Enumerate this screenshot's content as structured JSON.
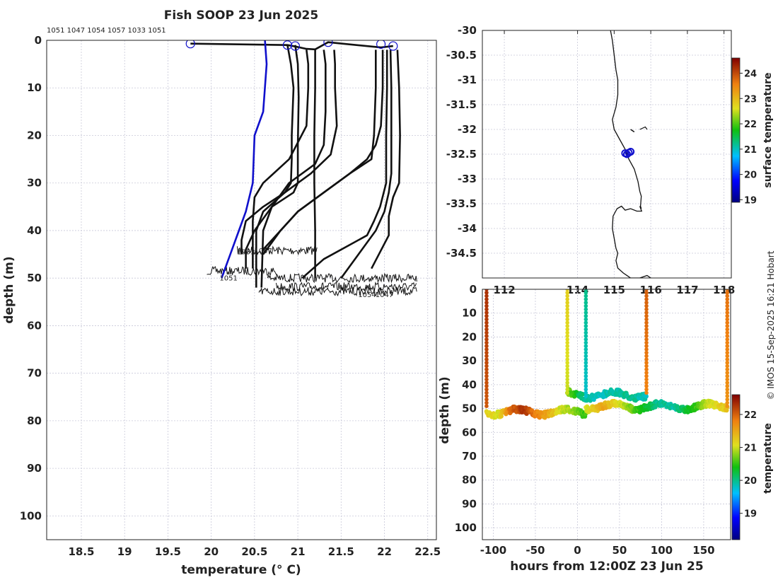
{
  "figure": {
    "title": "Fish SOOP 23 Jun 2025",
    "credit": "© IMOS 15-Sep-2025 16:21 Hobart"
  },
  "chart_data": [
    {
      "type": "line",
      "panel": "profiles",
      "xlabel": "temperature (° C)",
      "ylabel": "depth (m)",
      "xlim": [
        18.1,
        22.6
      ],
      "ylim": [
        105,
        0
      ],
      "y_inverted": true,
      "xticks": [
        18.5,
        19,
        19.5,
        20,
        20.5,
        21,
        21.5,
        22,
        22.5
      ],
      "yticks": [
        0,
        10,
        20,
        30,
        40,
        50,
        60,
        70,
        80,
        90,
        100
      ],
      "grid": true,
      "header_labels": "1051 1047 1054 1057 1033 1051",
      "highlight_color": "#1010cc",
      "series": [
        {
          "id": "1051",
          "color": "#1010cc",
          "x": [
            20.62,
            20.64,
            20.6,
            20.5,
            20.48,
            20.4,
            20.32,
            20.22,
            20.12
          ],
          "y": [
            0,
            5,
            15,
            20,
            30,
            36,
            40,
            45,
            50
          ]
        },
        {
          "id": "p2",
          "color": "#111111",
          "x": [
            20.88,
            20.92,
            20.95,
            20.93,
            20.93,
            20.92,
            20.85,
            20.6,
            20.4,
            20.35,
            20.35
          ],
          "y": [
            1,
            5,
            10,
            20,
            25,
            30,
            32,
            35,
            38,
            42,
            45
          ]
        },
        {
          "id": "p3",
          "color": "#111111",
          "x": [
            20.97,
            21.0,
            21.01,
            21.0,
            21.0,
            21.0,
            20.95,
            20.7,
            20.5,
            20.4,
            20.4
          ],
          "y": [
            1,
            5,
            12,
            22,
            28,
            30,
            32,
            35,
            40,
            44,
            48
          ]
        },
        {
          "id": "p4",
          "color": "#111111",
          "x": [
            21.1,
            21.12,
            21.12,
            21.1,
            20.9,
            20.6,
            20.5,
            20.48,
            20.48
          ],
          "y": [
            2,
            5,
            10,
            18,
            25,
            30,
            33,
            38,
            48
          ]
        },
        {
          "id": "p5",
          "color": "#111111",
          "x": [
            21.2,
            21.2,
            21.19,
            21.19,
            21.2,
            21.2
          ],
          "y": [
            2,
            10,
            20,
            30,
            40,
            50
          ]
        },
        {
          "id": "p6",
          "color": "#111111",
          "x": [
            21.3,
            21.32,
            21.32,
            21.3,
            21.2,
            20.9,
            20.7,
            20.6,
            20.58
          ],
          "y": [
            2,
            5,
            15,
            22,
            26,
            30,
            35,
            40,
            52
          ]
        },
        {
          "id": "p7",
          "color": "#111111",
          "x": [
            21.42,
            21.43,
            21.43,
            21.45,
            21.38,
            21.15,
            20.85,
            20.6,
            20.52,
            20.52
          ],
          "y": [
            2,
            5,
            10,
            18,
            24,
            28,
            32,
            36,
            40,
            52
          ]
        },
        {
          "id": "p8",
          "color": "#111111",
          "x": [
            21.9,
            21.9,
            21.88,
            21.85,
            21.6,
            21.3,
            21.0,
            20.8,
            20.6
          ],
          "y": [
            2,
            10,
            20,
            25,
            28,
            32,
            36,
            40,
            44
          ]
        },
        {
          "id": "p9",
          "color": "#111111",
          "x": [
            21.98,
            21.98,
            21.96,
            21.9,
            21.8,
            21.6,
            21.3,
            21.0,
            20.8,
            20.6
          ],
          "y": [
            2,
            10,
            18,
            22,
            25,
            28,
            32,
            36,
            40,
            45
          ]
        },
        {
          "id": "p10",
          "color": "#111111",
          "x": [
            22.03,
            22.03,
            22.02,
            22.02,
            21.95,
            21.88,
            21.8,
            21.6,
            21.3,
            21.05
          ],
          "y": [
            2,
            10,
            20,
            30,
            35,
            38,
            41,
            43,
            46,
            50
          ]
        },
        {
          "id": "p11",
          "color": "#111111",
          "x": [
            22.07,
            22.08,
            22.08,
            22.08,
            22.05,
            22.0,
            21.9,
            21.7,
            21.5
          ],
          "y": [
            2,
            10,
            20,
            28,
            32,
            36,
            40,
            45,
            50
          ]
        },
        {
          "id": "p12",
          "color": "#111111",
          "x": [
            22.15,
            22.17,
            22.18,
            22.17,
            22.1,
            22.05,
            22.05,
            21.85
          ],
          "y": [
            2,
            10,
            20,
            30,
            33,
            37,
            41,
            48
          ]
        },
        {
          "id": "surface-track",
          "color": "#111111",
          "x": [
            19.76,
            20.88,
            20.97,
            21.1,
            21.2,
            21.35,
            21.96,
            22.1
          ],
          "y": [
            0.7,
            1.0,
            1.3,
            1.8,
            1.9,
            0.4,
            1.5,
            1.2
          ]
        }
      ],
      "bottom_noise": [
        {
          "x0": 20.3,
          "x1": 21.22,
          "y": 44.2
        },
        {
          "x0": 19.95,
          "x1": 20.75,
          "y": 48.5
        },
        {
          "x0": 20.65,
          "x1": 22.37,
          "y": 50.0
        },
        {
          "x0": 20.75,
          "x1": 22.37,
          "y": 51.8
        },
        {
          "x0": 20.55,
          "x1": 22.37,
          "y": 52.8
        }
      ],
      "markers": [
        {
          "x": 19.76,
          "y": 0.7
        },
        {
          "x": 20.88,
          "y": 1.0
        },
        {
          "x": 20.97,
          "y": 1.2
        },
        {
          "x": 21.35,
          "y": 0.4
        },
        {
          "x": 21.96,
          "y": 0.8
        },
        {
          "x": 22.1,
          "y": 1.2
        }
      ],
      "annotations": [
        {
          "text": "1033",
          "x": 20.4,
          "y": 45.0
        },
        {
          "text": "1057",
          "x": 20.6,
          "y": 44.8
        },
        {
          "text": "1051",
          "x": 20.2,
          "y": 50.5
        },
        {
          "text": "1054",
          "x": 21.8,
          "y": 54.0
        },
        {
          "text": "1047",
          "x": 22.0,
          "y": 54.0
        }
      ]
    },
    {
      "type": "scatter",
      "panel": "map",
      "ylim": [
        -35,
        -30
      ],
      "xlim": [
        111.4,
        118.2
      ],
      "yticks": [
        -30,
        -30.5,
        -31,
        -31.5,
        -32,
        -32.5,
        -33,
        -33.5,
        -34,
        -34.5
      ],
      "xticks": [
        112,
        114,
        115,
        116,
        117,
        118
      ],
      "xticklabels": [
        "112",
        "114",
        "115",
        "116",
        "117",
        "118"
      ],
      "grid": true,
      "coastline": {
        "lon": [
          114.9,
          114.95,
          115.0,
          115.05,
          115.1,
          115.1,
          115.05,
          114.95,
          115.0,
          115.15,
          115.3,
          115.35,
          115.4,
          115.55,
          115.65,
          115.7,
          115.74,
          115.72,
          115.74,
          115.7,
          115.75,
          115.62,
          115.45,
          115.3,
          115.2,
          115.08,
          114.97,
          114.95,
          115.0,
          115.05,
          115.1,
          115.05,
          115.1,
          115.25,
          115.45,
          115.7,
          115.9,
          116.0
        ],
        "lat": [
          -30.0,
          -30.2,
          -30.5,
          -30.8,
          -31.0,
          -31.3,
          -31.55,
          -31.8,
          -32.0,
          -32.2,
          -32.4,
          -32.5,
          -32.6,
          -32.8,
          -33.05,
          -33.25,
          -33.35,
          -33.55,
          -33.6,
          -33.55,
          -33.65,
          -33.65,
          -33.6,
          -33.63,
          -33.55,
          -33.6,
          -33.75,
          -34.0,
          -34.2,
          -34.4,
          -34.5,
          -34.65,
          -34.8,
          -34.9,
          -35.0,
          -35.0,
          -34.95,
          -35.0
        ]
      },
      "track": {
        "lon": [
          115.3,
          115.35,
          115.4,
          115.45
        ],
        "lat": [
          -32.48,
          -32.5,
          -32.47,
          -32.45
        ]
      },
      "track_color": "#1010cc",
      "colorbar": {
        "label": "surface temperature",
        "ticks": [
          19,
          20,
          21,
          22,
          23,
          24
        ],
        "range": [
          18.9,
          24.6
        ]
      }
    },
    {
      "type": "scatter",
      "panel": "depth-time",
      "xlabel": "hours from 12:00Z 23 Jun 25",
      "ylabel": "depth (m)",
      "xlim": [
        -113,
        182
      ],
      "ylim": [
        105,
        0
      ],
      "y_inverted": true,
      "xticks": [
        -100,
        -50,
        0,
        50,
        100,
        150
      ],
      "yticks": [
        0,
        10,
        20,
        30,
        40,
        50,
        60,
        70,
        80,
        90,
        100
      ],
      "grid": true,
      "casts": [
        {
          "t": -108,
          "top_temp": 22.3,
          "bottom": 50
        },
        {
          "t": -12,
          "top_temp": 21.2,
          "bottom": 44
        },
        {
          "t": 10,
          "top_temp": 20.0,
          "bottom": 45
        },
        {
          "t": 82,
          "top_temp": 22.0,
          "bottom": 44
        },
        {
          "t": 178,
          "top_temp": 21.9,
          "bottom": 50
        }
      ],
      "bands": [
        {
          "t0": -108,
          "t1": 10,
          "depth": 51.5,
          "temps": [
            21.2,
            21.0,
            22.0,
            22.3,
            21.8,
            21.5,
            21.0,
            20.8,
            20.5
          ]
        },
        {
          "t0": -12,
          "t1": 82,
          "depth": 44.3,
          "temps": [
            20.8,
            20.0,
            19.8,
            19.9,
            20.0,
            19.8
          ]
        },
        {
          "t0": 10,
          "t1": 178,
          "depth": 49.2,
          "temps": [
            21.0,
            21.5,
            21.0,
            20.5,
            20.0,
            19.9,
            20.4,
            21.0,
            21.3
          ]
        }
      ],
      "colorbar": {
        "label": "temperature",
        "ticks": [
          19,
          20,
          21,
          22
        ],
        "range": [
          18.2,
          22.6
        ]
      }
    }
  ]
}
